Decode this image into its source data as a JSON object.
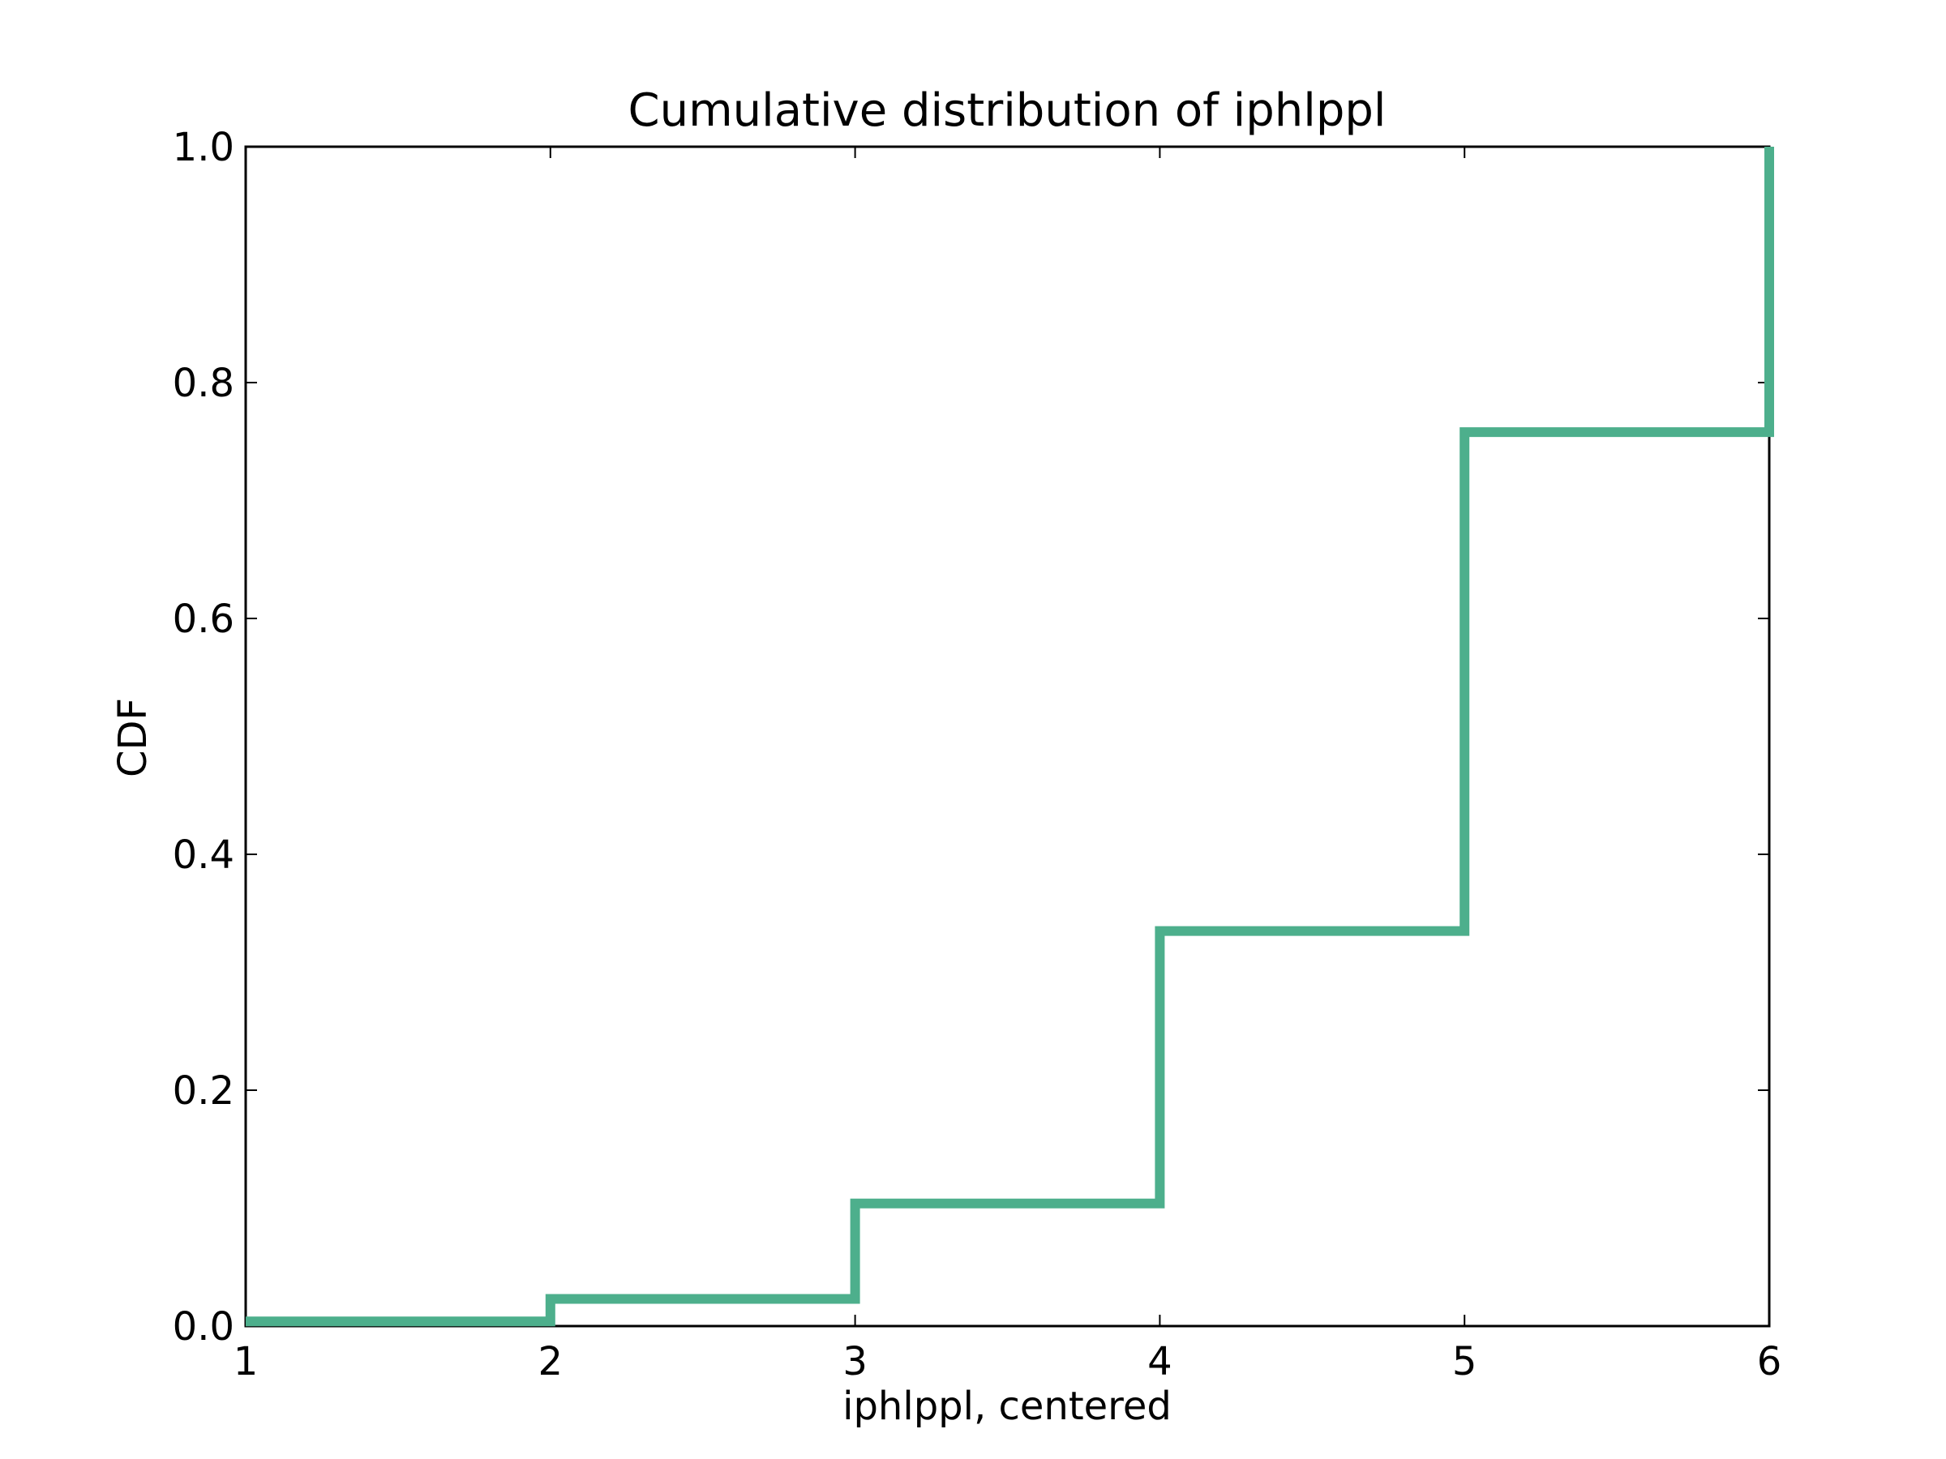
{
  "chart_data": {
    "type": "line",
    "title": "Cumulative distribution of iphlppl",
    "xlabel": "iphlppl, centered",
    "ylabel": "CDF",
    "xlim": [
      1,
      6
    ],
    "ylim": [
      0,
      1
    ],
    "x_ticks": [
      1,
      2,
      3,
      4,
      5,
      6
    ],
    "x_tick_labels": [
      "1",
      "2",
      "3",
      "4",
      "5",
      "6"
    ],
    "y_ticks": [
      0,
      0.2,
      0.4,
      0.6,
      0.8,
      1.0
    ],
    "y_tick_labels": [
      "0.0",
      "0.2",
      "0.4",
      "0.6",
      "0.8",
      "1.0"
    ],
    "grid": false,
    "line_color": "#4daf8c",
    "series": [
      {
        "step": true,
        "x": [
          1,
          2,
          2,
          3,
          3,
          4,
          4,
          5,
          5,
          6,
          6
        ],
        "y": [
          0.004,
          0.004,
          0.023,
          0.023,
          0.104,
          0.104,
          0.335,
          0.335,
          0.758,
          0.758,
          1.0
        ]
      }
    ]
  }
}
